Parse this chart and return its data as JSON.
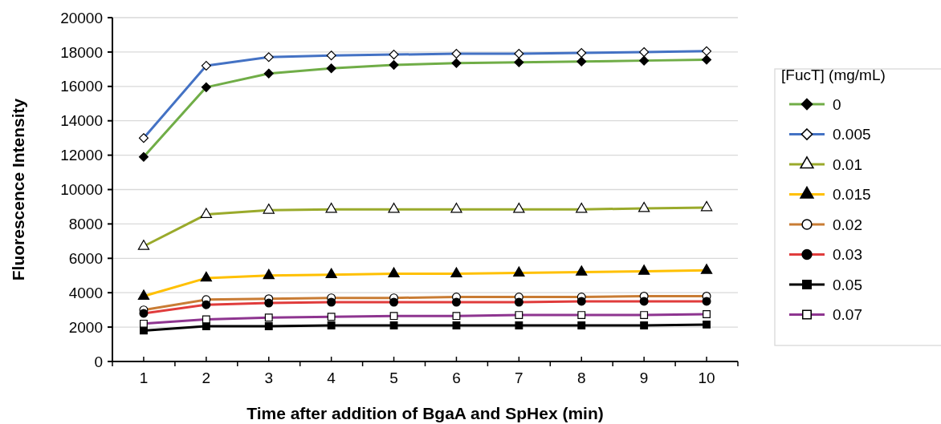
{
  "chart_data": {
    "type": "line",
    "xlabel": "Time after addition of BgaA and SpHex (min)",
    "ylabel": "Fluorescence Intensity",
    "legend_title": "[FucT] (mg/mL)",
    "categories": [
      "1",
      "2",
      "3",
      "4",
      "5",
      "6",
      "7",
      "8",
      "9",
      "10"
    ],
    "ylim": [
      0,
      20000
    ],
    "yticks": [
      0,
      2000,
      4000,
      6000,
      8000,
      10000,
      12000,
      14000,
      16000,
      18000,
      20000
    ],
    "grid": "y",
    "legend": "right",
    "line_style": "solid",
    "series": [
      {
        "name": "0",
        "color": "#70ad47",
        "marker": "diamond",
        "values": [
          11900,
          15950,
          16750,
          17050,
          17250,
          17350,
          17400,
          17450,
          17500,
          17550
        ]
      },
      {
        "name": "0.005",
        "color": "#4472c4",
        "marker": "diamond",
        "values": [
          13000,
          17200,
          17700,
          17800,
          17850,
          17900,
          17900,
          17950,
          18000,
          18050
        ]
      },
      {
        "name": "0.01",
        "color": "#9aaa2b",
        "marker": "triangle",
        "values": [
          6700,
          8550,
          8800,
          8850,
          8850,
          8850,
          8850,
          8850,
          8900,
          8950
        ]
      },
      {
        "name": "0.015",
        "color": "#ffc000",
        "marker": "triangle",
        "values": [
          3800,
          4850,
          5000,
          5050,
          5100,
          5100,
          5150,
          5200,
          5250,
          5300
        ]
      },
      {
        "name": "0.02",
        "color": "#c97c34",
        "marker": "circle",
        "values": [
          3000,
          3600,
          3650,
          3700,
          3700,
          3750,
          3750,
          3750,
          3800,
          3800
        ]
      },
      {
        "name": "0.03",
        "color": "#e03c3c",
        "marker": "circle",
        "values": [
          2800,
          3300,
          3400,
          3450,
          3450,
          3450,
          3450,
          3500,
          3500,
          3500
        ]
      },
      {
        "name": "0.05",
        "color": "#000000",
        "marker": "square",
        "values": [
          1800,
          2050,
          2050,
          2100,
          2100,
          2100,
          2100,
          2100,
          2100,
          2150
        ]
      },
      {
        "name": "0.07",
        "color": "#8e3590",
        "marker": "square",
        "values": [
          2200,
          2450,
          2550,
          2600,
          2650,
          2650,
          2700,
          2700,
          2700,
          2750
        ]
      }
    ]
  }
}
